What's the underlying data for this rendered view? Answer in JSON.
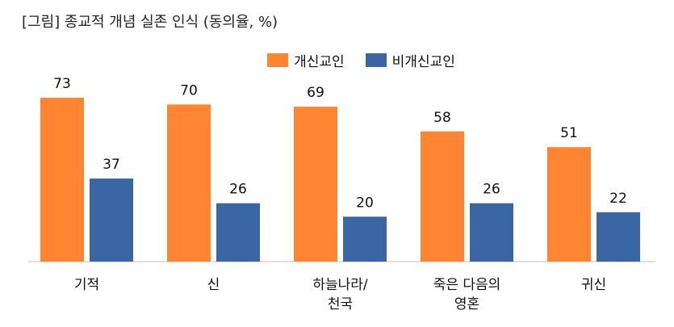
{
  "title": "[그림] 종교적 개념 실존 인식 (동의율, %)",
  "legend": [
    {
      "label": "개신교인",
      "color": "#FF8533"
    },
    {
      "label": "비개신교인",
      "color": "#3A66A3"
    }
  ],
  "chart_data": {
    "type": "bar",
    "title": "[그림] 종교적 개념 실존 인식 (동의율, %)",
    "xlabel": "",
    "ylabel": "",
    "ylim": [
      0,
      80
    ],
    "grid": false,
    "legend_position": "top-center",
    "categories": [
      [
        "기적"
      ],
      [
        "신"
      ],
      [
        "하늘나라/",
        "천국"
      ],
      [
        "죽은 다음의",
        "영혼"
      ],
      [
        "귀신"
      ]
    ],
    "series": [
      {
        "name": "개신교인",
        "color": "#FF8533",
        "values": [
          73,
          70,
          69,
          58,
          51
        ]
      },
      {
        "name": "비개신교인",
        "color": "#3A66A3",
        "values": [
          37,
          26,
          20,
          26,
          22
        ]
      }
    ]
  }
}
